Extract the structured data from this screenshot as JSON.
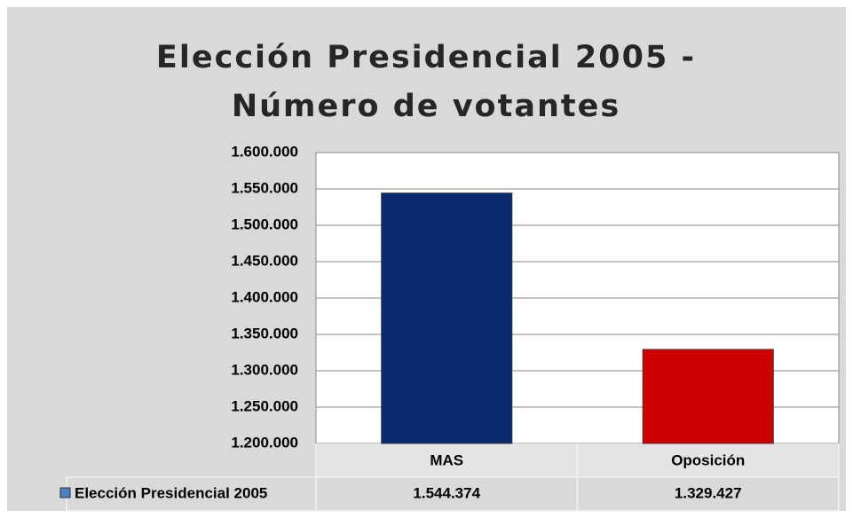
{
  "chart_data": {
    "type": "bar",
    "title": "Elección Presidencial 2005 - Número de votantes",
    "categories": [
      "MAS",
      "Oposición"
    ],
    "series": [
      {
        "name": "Elección Presidencial 2005",
        "colors": [
          "#0b2a6f",
          "#cc0000"
        ],
        "values": [
          1544374,
          1329427
        ],
        "value_labels": [
          "1.544.374",
          "1.329.427"
        ]
      }
    ],
    "ylim": [
      1200000,
      1600000
    ],
    "yticks": [
      {
        "value": 1200000,
        "label": "1.200.000"
      },
      {
        "value": 1250000,
        "label": "1.250.000"
      },
      {
        "value": 1300000,
        "label": "1.300.000"
      },
      {
        "value": 1350000,
        "label": "1.350.000"
      },
      {
        "value": 1400000,
        "label": "1.400.000"
      },
      {
        "value": 1450000,
        "label": "1.450.000"
      },
      {
        "value": 1500000,
        "label": "1.500.000"
      },
      {
        "value": 1550000,
        "label": "1.550.000"
      },
      {
        "value": 1600000,
        "label": "1.600.000"
      }
    ],
    "grid": true
  }
}
